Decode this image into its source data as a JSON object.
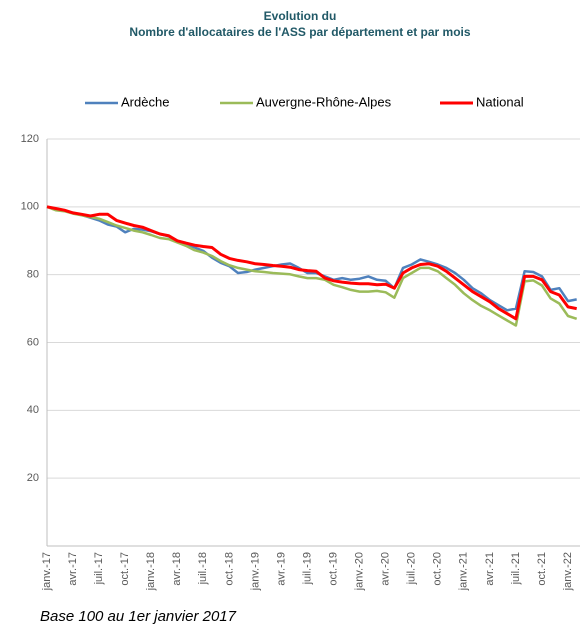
{
  "chart_data": {
    "type": "line",
    "title": "Evolution du",
    "subtitle": "Nombre d'allocataires de l'ASS par département et par mois",
    "note": "Base 100 au 1er janvier 2017",
    "categories": [
      "janv.-17",
      null,
      null,
      "avr.-17",
      null,
      null,
      "juil.-17",
      null,
      null,
      "oct.-17",
      null,
      null,
      "janv.-18",
      null,
      null,
      "avr.-18",
      null,
      null,
      "juil.-18",
      null,
      null,
      "oct.-18",
      null,
      null,
      "janv.-19",
      null,
      null,
      "avr.-19",
      null,
      null,
      "juil.-19",
      null,
      null,
      "oct.-19",
      null,
      null,
      "janv.-20",
      null,
      null,
      "avr.-20",
      null,
      null,
      "juil.-20",
      null,
      null,
      "oct.-20",
      null,
      null,
      "janv.-21",
      null,
      null,
      "avr.-21",
      null,
      null,
      "juil.-21",
      null,
      null,
      "oct.-21",
      null,
      null,
      "janv.-22",
      null
    ],
    "series": [
      {
        "name": "Ardèche",
        "color": "#4f81bd",
        "values": [
          100,
          99.3,
          98.8,
          98.2,
          97.6,
          96.8,
          96,
          94.8,
          94.2,
          92.5,
          93.5,
          93.3,
          92.8,
          92,
          91.3,
          90,
          89,
          88,
          87,
          85,
          83.5,
          82.5,
          80.5,
          80.8,
          81.5,
          82,
          82.5,
          83,
          83.3,
          82,
          80.5,
          80.5,
          79.5,
          78.5,
          79,
          78.5,
          78.8,
          79.5,
          78.5,
          78.2,
          76,
          82,
          83,
          84.5,
          83.8,
          83,
          82,
          80.5,
          78.5,
          76,
          74.5,
          72.5,
          71,
          69.5,
          70,
          81,
          80.8,
          79.5,
          75.5,
          76,
          72.2,
          72.7
        ]
      },
      {
        "name": "Auvergne-Rhône-Alpes",
        "color": "#9bbb59",
        "values": [
          100,
          99,
          98.7,
          98,
          97.5,
          97,
          96.5,
          95.5,
          94.5,
          93.8,
          93,
          92.5,
          91.7,
          90.8,
          90.5,
          89.5,
          88.5,
          87.2,
          86.5,
          85.5,
          84,
          82.8,
          82,
          81.5,
          81,
          80.8,
          80.5,
          80.3,
          80.1,
          79.5,
          79,
          79,
          78.5,
          77,
          76.3,
          75.5,
          75,
          75,
          75.2,
          74.8,
          73.2,
          79,
          80.5,
          82,
          82,
          81,
          79,
          77,
          74.5,
          72.5,
          70.8,
          69.5,
          68,
          66.5,
          65,
          78,
          78.3,
          76.8,
          73,
          71.5,
          67.8,
          67
        ]
      },
      {
        "name": "National",
        "color": "#ff0000",
        "values": [
          100,
          99.5,
          99,
          98.2,
          97.8,
          97.3,
          97.8,
          97.8,
          96,
          95.2,
          94.5,
          94,
          93,
          92,
          91.5,
          90,
          89.3,
          88.7,
          88.3,
          88,
          86,
          84.8,
          84.2,
          83.8,
          83.2,
          83,
          82.7,
          82.5,
          82.2,
          81.5,
          81.2,
          81,
          79,
          78.2,
          77.8,
          77.5,
          77.3,
          77.3,
          77,
          77.2,
          76,
          80.5,
          82,
          83,
          83.2,
          82.5,
          81,
          79,
          77,
          75,
          73.5,
          72,
          70,
          68.5,
          67,
          79.5,
          79.5,
          78.5,
          75,
          74,
          70.5,
          70
        ]
      }
    ],
    "ylim": [
      0,
      120
    ],
    "yticks": [
      20,
      40,
      60,
      80,
      100,
      120
    ],
    "grid": true,
    "legend": "top"
  }
}
